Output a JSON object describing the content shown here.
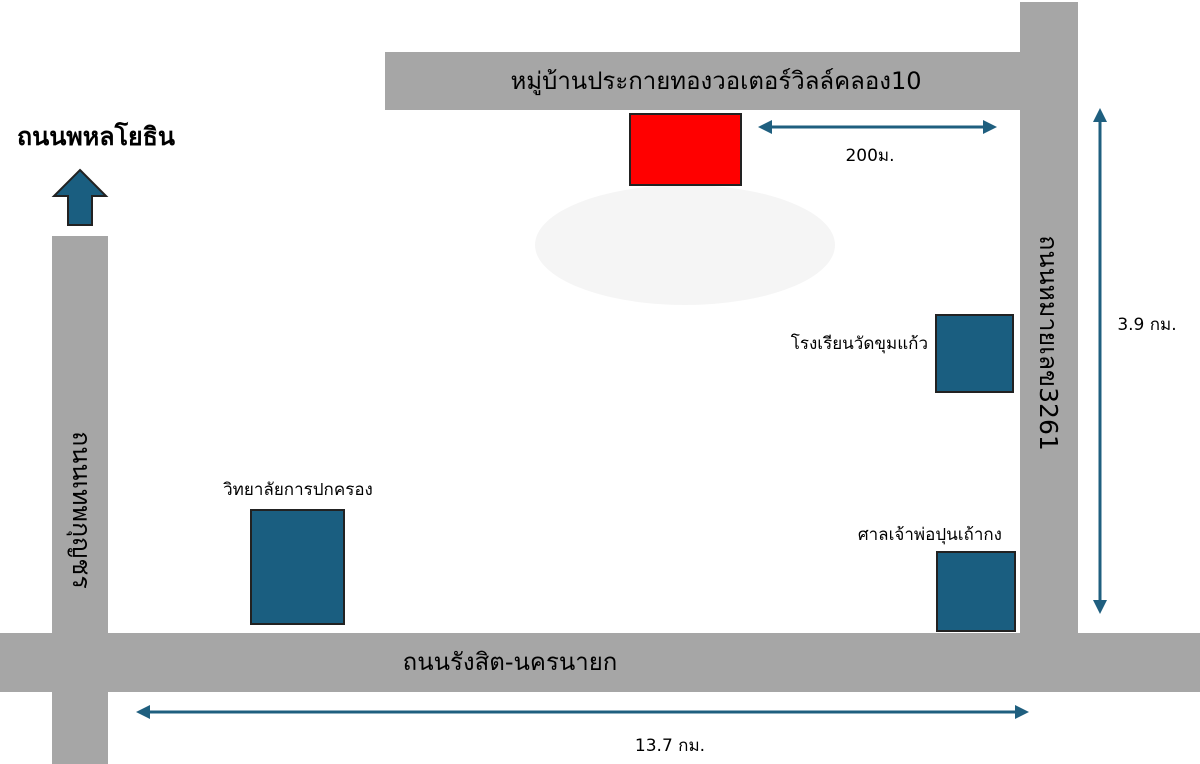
{
  "roads": {
    "north": "ถนนพหลโยธิน",
    "village": "หมู่บ้านประกายทองวอเตอร์วิลล์คลอง10",
    "right": "ถนนหมายเลข3261",
    "left": "ถนนเทพกุญชร",
    "bottom": "ถนนรังสิต-นครนายก"
  },
  "places": {
    "school": "โรงเรียนวัดขุมแก้ว",
    "college": "วิทยาลัยการปกครอง",
    "shrine": "ศาลเจ้าพ่อปุนเถ้ากง"
  },
  "distances": {
    "village_to_road": "200ม.",
    "right_road": "3.9 กม.",
    "bottom_road": "13.7 กม."
  }
}
